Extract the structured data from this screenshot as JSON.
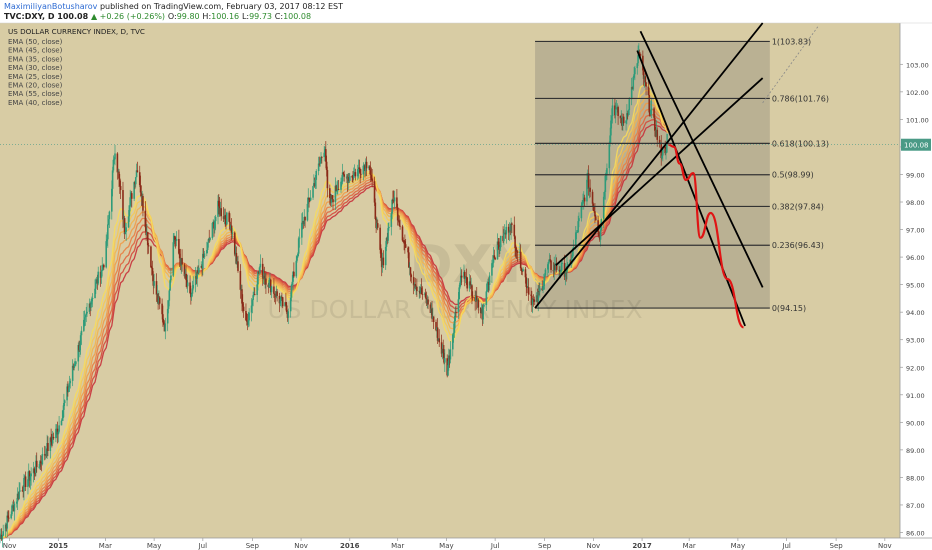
{
  "header": {
    "author": "MaximiliyanBotusharov",
    "published_text": "published on TradingView.com, February 03, 2017 08:12 EST",
    "symbol": "TVC:DXY, D",
    "last": "100.08",
    "change": "▲ +0.26 (+0.26%)",
    "o_label": "O:",
    "o": "99.80",
    "h_label": "H:",
    "h": "100.16",
    "l_label": "L:",
    "l": "99.73",
    "c_label": "C:",
    "c": "100.08"
  },
  "colors": {
    "background": "#d8cca4",
    "fib_zone": "#b3aa8e",
    "up_candle": "#2f9b7a",
    "down_candle": "#8a2a18",
    "projection": "#e01414",
    "trendline": "#000000",
    "price_tag": "#4a9a86"
  },
  "chart_data": {
    "type": "candlestick",
    "title": "US DOLLAR CURRENCY INDEX, D, TVC",
    "watermark_symbol": "DXY",
    "watermark_name": "US DOLLAR CURRENCY INDEX",
    "indicators": [
      "EMA (50, close)",
      "EMA (45, close)",
      "EMA (35, close)",
      "EMA (30, close)",
      "EMA (25, close)",
      "EMA (20, close)",
      "EMA (55, close)",
      "EMA (40, close)"
    ],
    "ylim": [
      85.8,
      104.5
    ],
    "y_ticks": [
      "86.00",
      "87.00",
      "88.00",
      "89.00",
      "90.00",
      "91.00",
      "92.00",
      "93.00",
      "94.00",
      "95.00",
      "96.00",
      "97.00",
      "98.00",
      "99.00",
      "100.00",
      "101.00",
      "102.00",
      "103.00"
    ],
    "x_ticks": [
      "Nov",
      "2015",
      "Mar",
      "May",
      "Jul",
      "Sep",
      "Nov",
      "2016",
      "Mar",
      "May",
      "Jul",
      "Sep",
      "Nov",
      "2017",
      "Mar",
      "May",
      "Jul",
      "Sep",
      "Nov"
    ],
    "current_price": "100.08",
    "price_path": [
      [
        "2014-10-20",
        85.8
      ],
      [
        "2014-11-15",
        87.6
      ],
      [
        "2014-12-10",
        88.6
      ],
      [
        "2015-01-01",
        89.8
      ],
      [
        "2015-01-20",
        92.0
      ],
      [
        "2015-02-10",
        94.4
      ],
      [
        "2015-03-01",
        96.0
      ],
      [
        "2015-03-13",
        100.0
      ],
      [
        "2015-03-25",
        97.0
      ],
      [
        "2015-04-10",
        99.3
      ],
      [
        "2015-05-01",
        95.0
      ],
      [
        "2015-05-15",
        93.4
      ],
      [
        "2015-05-26",
        96.8
      ],
      [
        "2015-06-15",
        94.5
      ],
      [
        "2015-07-07",
        96.4
      ],
      [
        "2015-07-20",
        97.8
      ],
      [
        "2015-08-05",
        97.2
      ],
      [
        "2015-08-24",
        93.5
      ],
      [
        "2015-09-10",
        95.6
      ],
      [
        "2015-10-15",
        94.0
      ],
      [
        "2015-11-01",
        97.0
      ],
      [
        "2015-12-01",
        100.1
      ],
      [
        "2015-12-05",
        97.8
      ],
      [
        "2015-12-20",
        98.8
      ],
      [
        "2016-01-05",
        99.0
      ],
      [
        "2016-01-25",
        99.5
      ],
      [
        "2016-02-10",
        95.6
      ],
      [
        "2016-02-25",
        98.2
      ],
      [
        "2016-03-20",
        95.2
      ],
      [
        "2016-04-10",
        94.2
      ],
      [
        "2016-05-02",
        91.9
      ],
      [
        "2016-05-20",
        95.5
      ],
      [
        "2016-06-15",
        93.9
      ],
      [
        "2016-06-28",
        96.0
      ],
      [
        "2016-07-20",
        97.2
      ],
      [
        "2016-08-10",
        95.0
      ],
      [
        "2016-08-20",
        94.2
      ],
      [
        "2016-09-05",
        95.7
      ],
      [
        "2016-10-01",
        95.5
      ],
      [
        "2016-10-25",
        98.8
      ],
      [
        "2016-11-09",
        96.8
      ],
      [
        "2016-11-25",
        101.5
      ],
      [
        "2016-12-10",
        100.8
      ],
      [
        "2016-12-28",
        103.4
      ],
      [
        "2017-01-10",
        101.5
      ],
      [
        "2017-01-25",
        99.8
      ],
      [
        "2017-02-03",
        100.08
      ]
    ],
    "fibonacci": {
      "start_date": "2016-08-20",
      "end_date": "2017-06-10",
      "levels": [
        {
          "ratio": "1",
          "label": "1(103.83)",
          "value": 103.83
        },
        {
          "ratio": "0.786",
          "label": "0.786(101.76)",
          "value": 101.76
        },
        {
          "ratio": "0.618",
          "label": "0.618(100.13)",
          "value": 100.13
        },
        {
          "ratio": "0.5",
          "label": "0.5(98.99)",
          "value": 98.99
        },
        {
          "ratio": "0.382",
          "label": "0.382(97.84)",
          "value": 97.84
        },
        {
          "ratio": "0.236",
          "label": "0.236(96.43)",
          "value": 96.43
        },
        {
          "ratio": "0",
          "label": "0(94.15)",
          "value": 94.15
        }
      ]
    },
    "trendlines": [
      {
        "from": [
          "2016-08-20",
          94.15
        ],
        "to": [
          "2017-06-01",
          104.5
        ]
      },
      {
        "from": [
          "2016-09-15",
          95.7
        ],
        "to": [
          "2017-06-01",
          102.5
        ]
      },
      {
        "from": [
          "2016-12-26",
          103.5
        ],
        "to": [
          "2017-05-10",
          93.5
        ]
      },
      {
        "from": [
          "2016-12-30",
          104.2
        ],
        "to": [
          "2017-06-01",
          94.9
        ]
      }
    ],
    "projection_path": [
      [
        "2017-02-03",
        100.08
      ],
      [
        "2017-02-10",
        100.0
      ],
      [
        "2017-02-17",
        99.4
      ],
      [
        "2017-02-25",
        98.8
      ],
      [
        "2017-03-06",
        99.05
      ],
      [
        "2017-03-15",
        96.7
      ],
      [
        "2017-03-28",
        97.6
      ],
      [
        "2017-04-18",
        95.2
      ],
      [
        "2017-05-08",
        93.45
      ]
    ]
  }
}
